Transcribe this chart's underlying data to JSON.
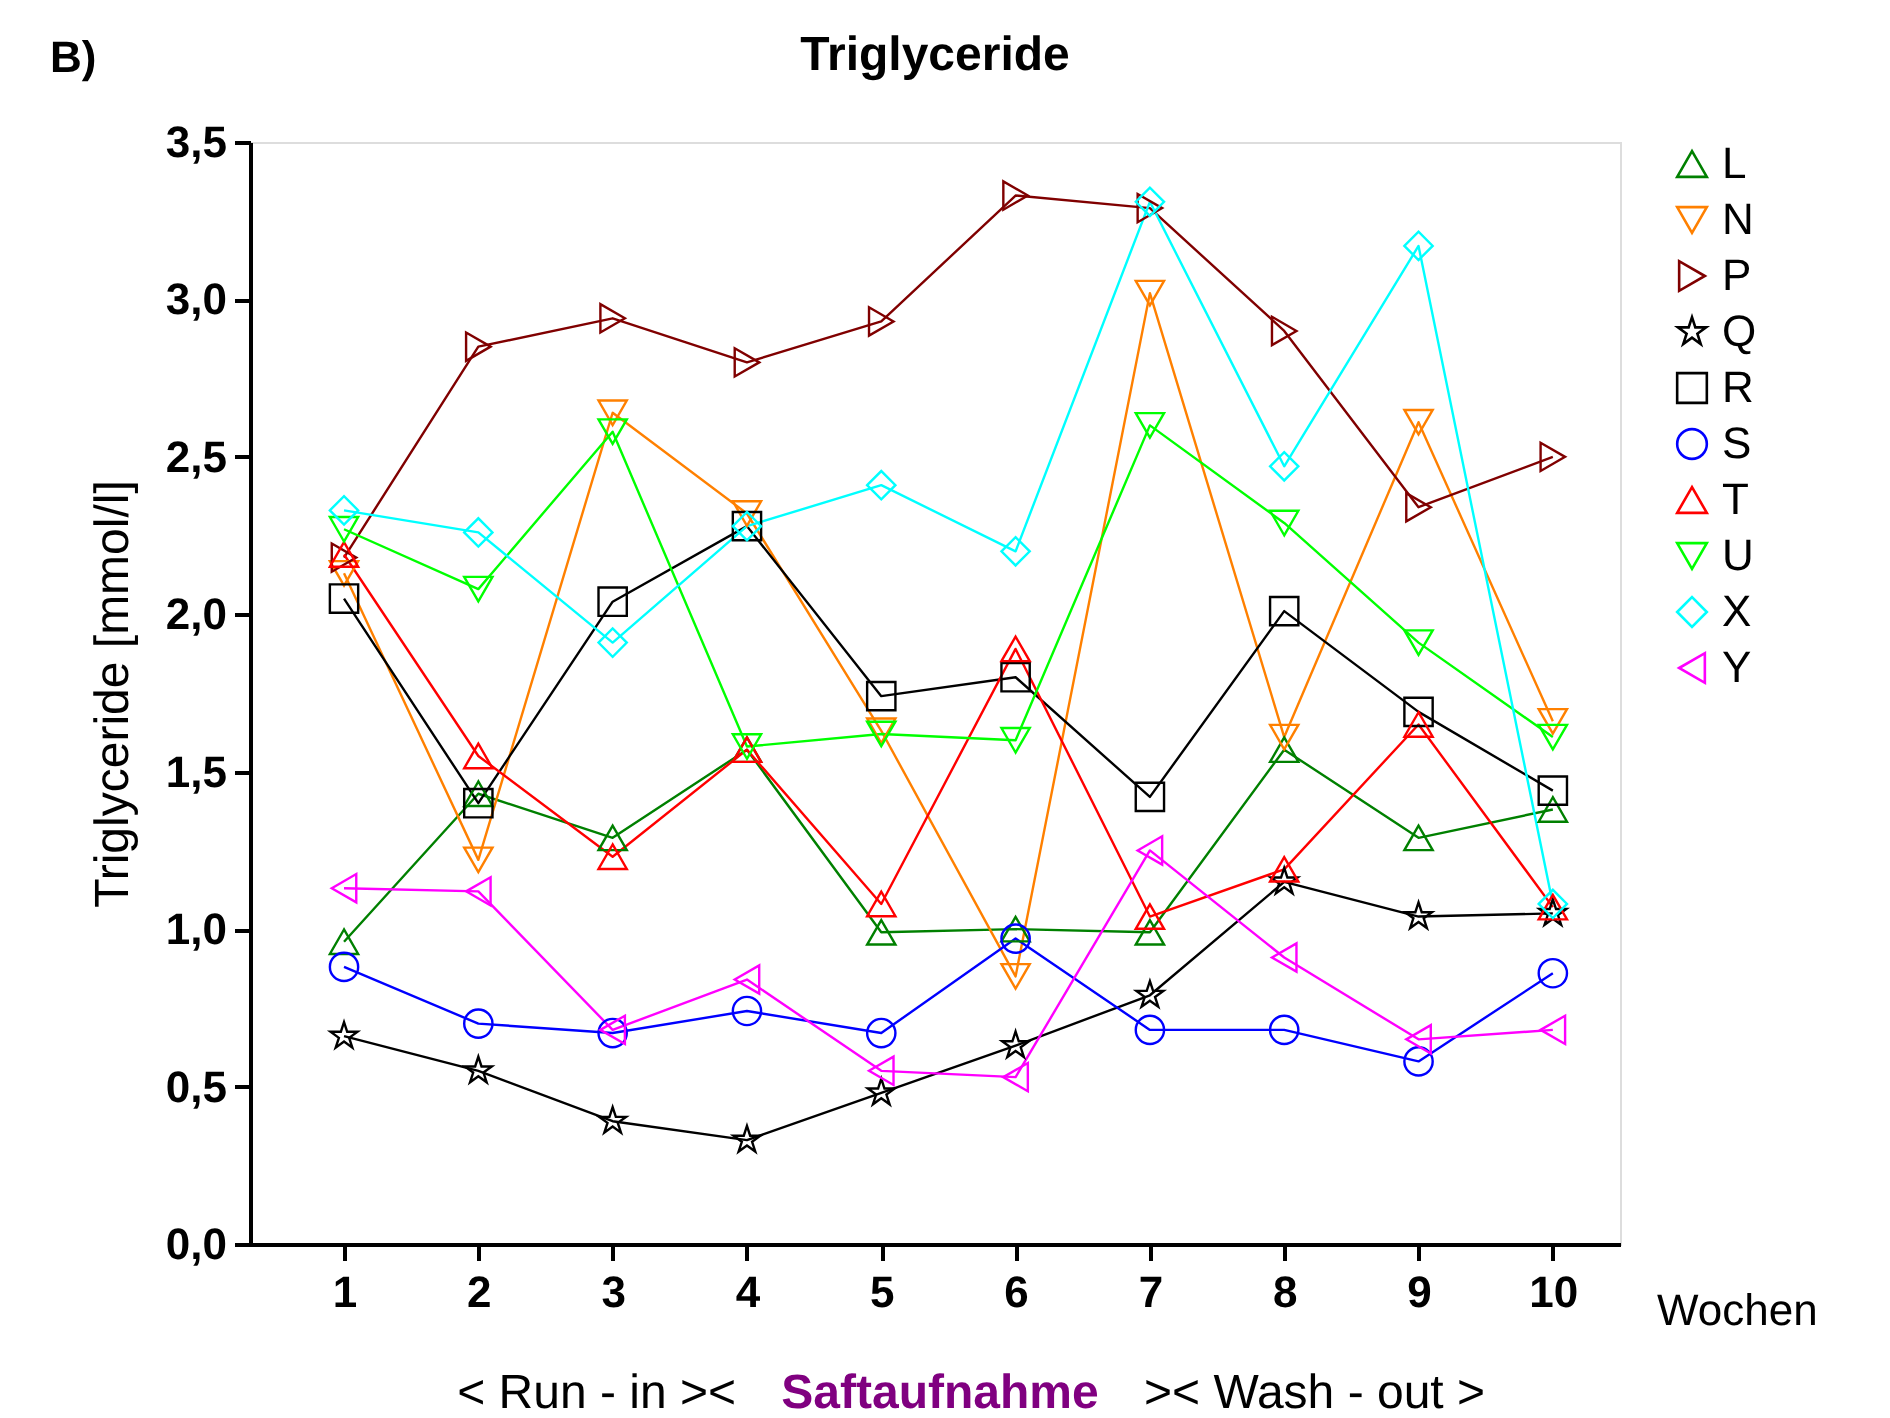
{
  "chart_data": {
    "type": "line",
    "title": "Triglyceride",
    "ylabel": "Triglyceride [mmol/l]",
    "xlabel": "Wochen",
    "annotations": [
      "B)",
      "< Run - in ><",
      "Saftaufnahme",
      "><  Wash - out  >"
    ],
    "x": [
      1,
      2,
      3,
      4,
      5,
      6,
      7,
      8,
      9,
      10
    ],
    "xlim": [
      0.3,
      10.5
    ],
    "xticks": [
      1,
      2,
      3,
      4,
      5,
      6,
      7,
      8,
      9,
      10
    ],
    "ylim": [
      0,
      3.5
    ],
    "yticks": [
      {
        "value": 0,
        "label": "0,0"
      },
      {
        "value": 0.5,
        "label": "0,5"
      },
      {
        "value": 1,
        "label": "1,0"
      },
      {
        "value": 1.5,
        "label": "1,5"
      },
      {
        "value": 2,
        "label": "2,0"
      },
      {
        "value": 2.5,
        "label": "2,5"
      },
      {
        "value": 3,
        "label": "3,0"
      },
      {
        "value": 3.5,
        "label": "3,5"
      }
    ],
    "grid": false,
    "legend": "right",
    "line_style": "solid",
    "series": [
      {
        "name": "L",
        "color": "#008000",
        "marker": "triangle",
        "values": [
          0.96,
          1.43,
          1.29,
          1.57,
          0.99,
          1.0,
          0.99,
          1.57,
          1.29,
          1.38
        ]
      },
      {
        "name": "N",
        "color": "#ff8000",
        "marker": "triangle-down",
        "values": [
          2.13,
          1.22,
          2.64,
          2.32,
          1.63,
          0.85,
          3.02,
          1.61,
          2.61,
          1.66
        ]
      },
      {
        "name": "P",
        "color": "#800000",
        "marker": "triangle-right",
        "values": [
          2.18,
          2.85,
          2.94,
          2.8,
          2.93,
          3.33,
          3.29,
          2.9,
          2.34,
          2.5
        ]
      },
      {
        "name": "Q",
        "color": "#000000",
        "marker": "star",
        "values": [
          0.66,
          0.55,
          0.39,
          0.33,
          0.48,
          0.63,
          0.79,
          1.15,
          1.04,
          1.05
        ]
      },
      {
        "name": "R",
        "color": "#000000",
        "marker": "square",
        "values": [
          2.05,
          1.4,
          2.04,
          2.28,
          1.74,
          1.8,
          1.42,
          2.01,
          1.69,
          1.44
        ]
      },
      {
        "name": "S",
        "color": "#0000ff",
        "marker": "circle",
        "values": [
          0.88,
          0.7,
          0.67,
          0.74,
          0.67,
          0.97,
          0.68,
          0.68,
          0.58,
          0.86
        ]
      },
      {
        "name": "T",
        "color": "#ff0000",
        "marker": "triangle",
        "values": [
          2.19,
          1.55,
          1.23,
          1.57,
          1.08,
          1.89,
          1.04,
          1.19,
          1.65,
          1.07
        ]
      },
      {
        "name": "U",
        "color": "#00ff00",
        "marker": "triangle-down",
        "values": [
          2.27,
          2.08,
          2.58,
          1.58,
          1.62,
          1.6,
          2.6,
          2.29,
          1.91,
          1.61
        ]
      },
      {
        "name": "X",
        "color": "#00ffff",
        "marker": "diamond",
        "values": [
          2.33,
          2.26,
          1.91,
          2.28,
          2.41,
          2.2,
          3.31,
          2.47,
          3.17,
          1.08
        ]
      },
      {
        "name": "Y",
        "color": "#ff00ff",
        "marker": "triangle-left",
        "values": [
          1.13,
          1.12,
          0.68,
          0.84,
          0.55,
          0.53,
          1.25,
          0.91,
          0.65,
          0.68
        ]
      }
    ]
  }
}
